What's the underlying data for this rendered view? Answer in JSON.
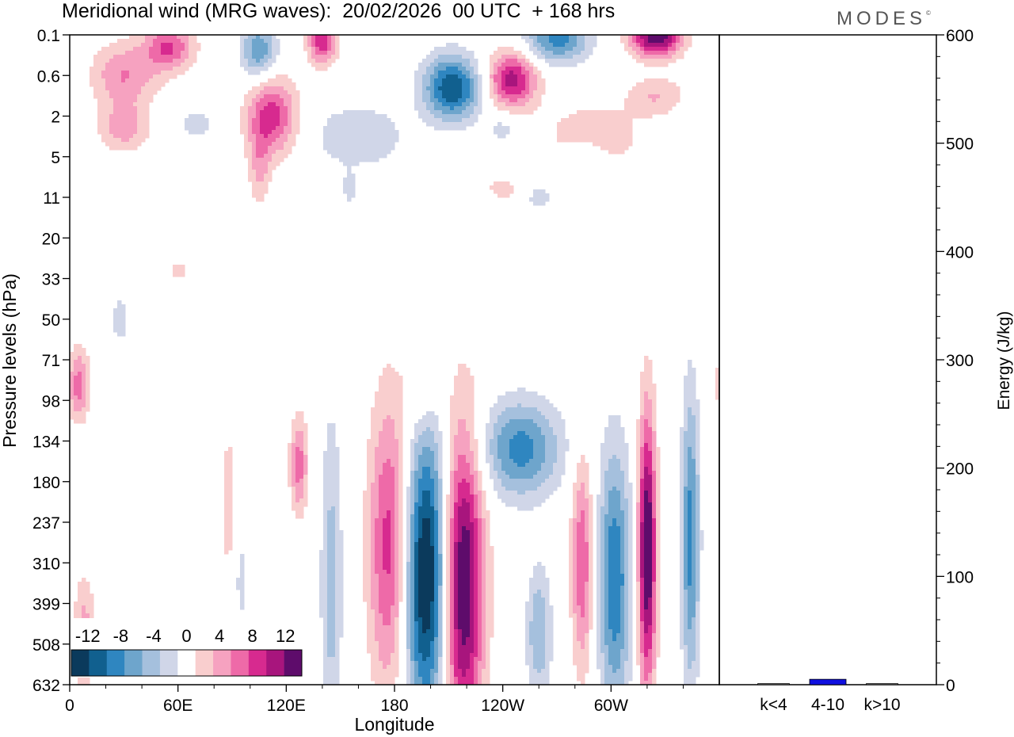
{
  "chart_data": {
    "type": "heatmap",
    "title": "Meridional wind (MRG waves):  20/02/2026  00 UTC  + 168 hrs",
    "brand": "MODES",
    "brand_mark": "©",
    "xlabel": "Longitude",
    "ylabel": "Pressure levels (hPa)",
    "x_ticks": [
      "0",
      "60E",
      "120E",
      "180",
      "120W",
      "60W"
    ],
    "x_tick_degrees": [
      0,
      60,
      120,
      180,
      240,
      300
    ],
    "x_range_degrees": [
      0,
      360
    ],
    "y_levels": [
      "0.1",
      "0.6",
      "2",
      "5",
      "11",
      "20",
      "33",
      "50",
      "71",
      "98",
      "134",
      "180",
      "237",
      "310",
      "399",
      "508",
      "632"
    ],
    "colorbar": {
      "labels": [
        "-12",
        "-8",
        "-4",
        "0",
        "4",
        "8",
        "12"
      ],
      "label_values": [
        -12,
        -8,
        -4,
        0,
        4,
        8,
        12
      ],
      "bounds": [
        -14,
        -12,
        -10,
        -8,
        -6,
        -4,
        -2,
        2,
        4,
        6,
        8,
        10,
        12,
        14
      ],
      "colors": [
        "#0b3a5c",
        "#11608f",
        "#2f86c0",
        "#6ea5cc",
        "#a5c0dd",
        "#d0d6e8",
        "#ffffff",
        "#f9cece",
        "#f6a2c0",
        "#ee6aa8",
        "#d72a8f",
        "#a8157d",
        "#5e0c6b"
      ],
      "position": "bottom-left"
    },
    "wave_features": [
      {
        "lon": 198,
        "center_level_index": 13.3,
        "half_width_deg": 14,
        "half_height_levels": 3.6,
        "value": -16
      },
      {
        "lon": 217,
        "center_level_index": 13.5,
        "half_width_deg": 12,
        "half_height_levels": 3.9,
        "value": 16
      },
      {
        "lon": 178,
        "center_level_index": 12.6,
        "half_width_deg": 12,
        "half_height_levels": 3.6,
        "value": 10
      },
      {
        "lon": 145,
        "center_level_index": 13.5,
        "half_width_deg": 6,
        "half_height_levels": 4.2,
        "value": -5
      },
      {
        "lon": 320,
        "center_level_index": 12.7,
        "half_width_deg": 5,
        "half_height_levels": 3.4,
        "value": 15
      },
      {
        "lon": 344,
        "center_level_index": 12.4,
        "half_width_deg": 5,
        "half_height_levels": 3.6,
        "value": -9
      },
      {
        "lon": 302,
        "center_level_index": 13.4,
        "half_width_deg": 9,
        "half_height_levels": 3.2,
        "value": -10
      },
      {
        "lon": 250,
        "center_level_index": 10.2,
        "half_width_deg": 22,
        "half_height_levels": 1.2,
        "value": -9
      },
      {
        "lon": 284,
        "center_level_index": 13.0,
        "half_width_deg": 6,
        "half_height_levels": 2.6,
        "value": 8
      },
      {
        "lon": 260,
        "center_level_index": 14.7,
        "half_width_deg": 7,
        "half_height_levels": 1.6,
        "value": -6
      },
      {
        "lon": 127,
        "center_level_index": 10.6,
        "half_width_deg": 5,
        "half_height_levels": 1.2,
        "value": 7
      },
      {
        "lon": 88,
        "center_level_index": 11.5,
        "half_width_deg": 5,
        "half_height_levels": 2.2,
        "value": 3
      },
      {
        "lon": 5,
        "center_level_index": 8.6,
        "half_width_deg": 6,
        "half_height_levels": 0.9,
        "value": 7
      },
      {
        "lon": 8,
        "center_level_index": 14.8,
        "half_width_deg": 6,
        "half_height_levels": 1.5,
        "value": 5
      },
      {
        "lon": 95,
        "center_level_index": 13.4,
        "half_width_deg": 4,
        "half_height_levels": 1.2,
        "value": -3
      },
      {
        "lon": 195,
        "center_level_index": 8.7,
        "half_width_deg": 10,
        "half_height_levels": 1.0,
        "value": 3
      },
      {
        "lon": 245,
        "center_level_index": 1.1,
        "half_width_deg": 14,
        "half_height_levels": 0.7,
        "value": 11
      },
      {
        "lon": 212,
        "center_level_index": 1.3,
        "half_width_deg": 16,
        "half_height_levels": 0.8,
        "value": -12
      },
      {
        "lon": 112,
        "center_level_index": 2.0,
        "half_width_deg": 14,
        "half_height_levels": 1.0,
        "value": 9
      },
      {
        "lon": 105,
        "center_level_index": 0.4,
        "half_width_deg": 10,
        "half_height_levels": 0.7,
        "value": -8
      },
      {
        "lon": 140,
        "center_level_index": 0.1,
        "half_width_deg": 8,
        "half_height_levels": 0.6,
        "value": 10
      },
      {
        "lon": 325,
        "center_level_index": 0.05,
        "half_width_deg": 14,
        "half_height_levels": 0.5,
        "value": 14
      },
      {
        "lon": 270,
        "center_level_index": 0.1,
        "half_width_deg": 18,
        "half_height_levels": 0.6,
        "value": -9
      },
      {
        "lon": 30,
        "center_level_index": 1.0,
        "half_width_deg": 18,
        "half_height_levels": 0.8,
        "value": 6
      },
      {
        "lon": 55,
        "center_level_index": 0.3,
        "half_width_deg": 14,
        "half_height_levels": 0.6,
        "value": 8
      },
      {
        "lon": 30,
        "center_level_index": 2.3,
        "half_width_deg": 14,
        "half_height_levels": 0.6,
        "value": 5
      },
      {
        "lon": 290,
        "center_level_index": 2.5,
        "half_width_deg": 26,
        "half_height_levels": 0.8,
        "value": 4
      },
      {
        "lon": 160,
        "center_level_index": 2.5,
        "half_width_deg": 26,
        "half_height_levels": 0.8,
        "value": -4
      },
      {
        "lon": 286,
        "center_level_index": 3.0,
        "half_width_deg": 12,
        "half_height_levels": 0.5,
        "value": -3
      },
      {
        "lon": 325,
        "center_level_index": 1.5,
        "half_width_deg": 16,
        "half_height_levels": 0.5,
        "value": 4
      },
      {
        "lon": 240,
        "center_level_index": 2.3,
        "half_width_deg": 8,
        "half_height_levels": 0.4,
        "value": -3
      },
      {
        "lon": 70,
        "center_level_index": 2.2,
        "half_width_deg": 10,
        "half_height_levels": 0.4,
        "value": -3
      },
      {
        "lon": 105,
        "center_level_index": 3.3,
        "half_width_deg": 6,
        "half_height_levels": 1.0,
        "value": 4
      },
      {
        "lon": 155,
        "center_level_index": 3.8,
        "half_width_deg": 4,
        "half_height_levels": 0.4,
        "value": -3
      },
      {
        "lon": 240,
        "center_level_index": 3.8,
        "half_width_deg": 10,
        "half_height_levels": 0.3,
        "value": 3
      },
      {
        "lon": 260,
        "center_level_index": 4.0,
        "half_width_deg": 8,
        "half_height_levels": 0.3,
        "value": -3
      },
      {
        "lon": 60,
        "center_level_index": 5.8,
        "half_width_deg": 6,
        "half_height_levels": 0.3,
        "value": 3
      },
      {
        "lon": 28,
        "center_level_index": 7.0,
        "half_width_deg": 6,
        "half_height_levels": 0.7,
        "value": -3
      },
      {
        "lon": 225,
        "center_level_index": 7.7,
        "half_width_deg": 4,
        "half_height_levels": 0.3,
        "value": -3
      }
    ],
    "energy_panel": {
      "ylabel": "Energy (J/kg)",
      "ylim": [
        0,
        600
      ],
      "y_ticks": [
        0,
        100,
        200,
        300,
        400,
        500,
        600
      ],
      "categories": [
        "k<4",
        "4-10",
        "k>10"
      ],
      "values": [
        1,
        5,
        1
      ],
      "bar_color": "#1010e0"
    }
  }
}
